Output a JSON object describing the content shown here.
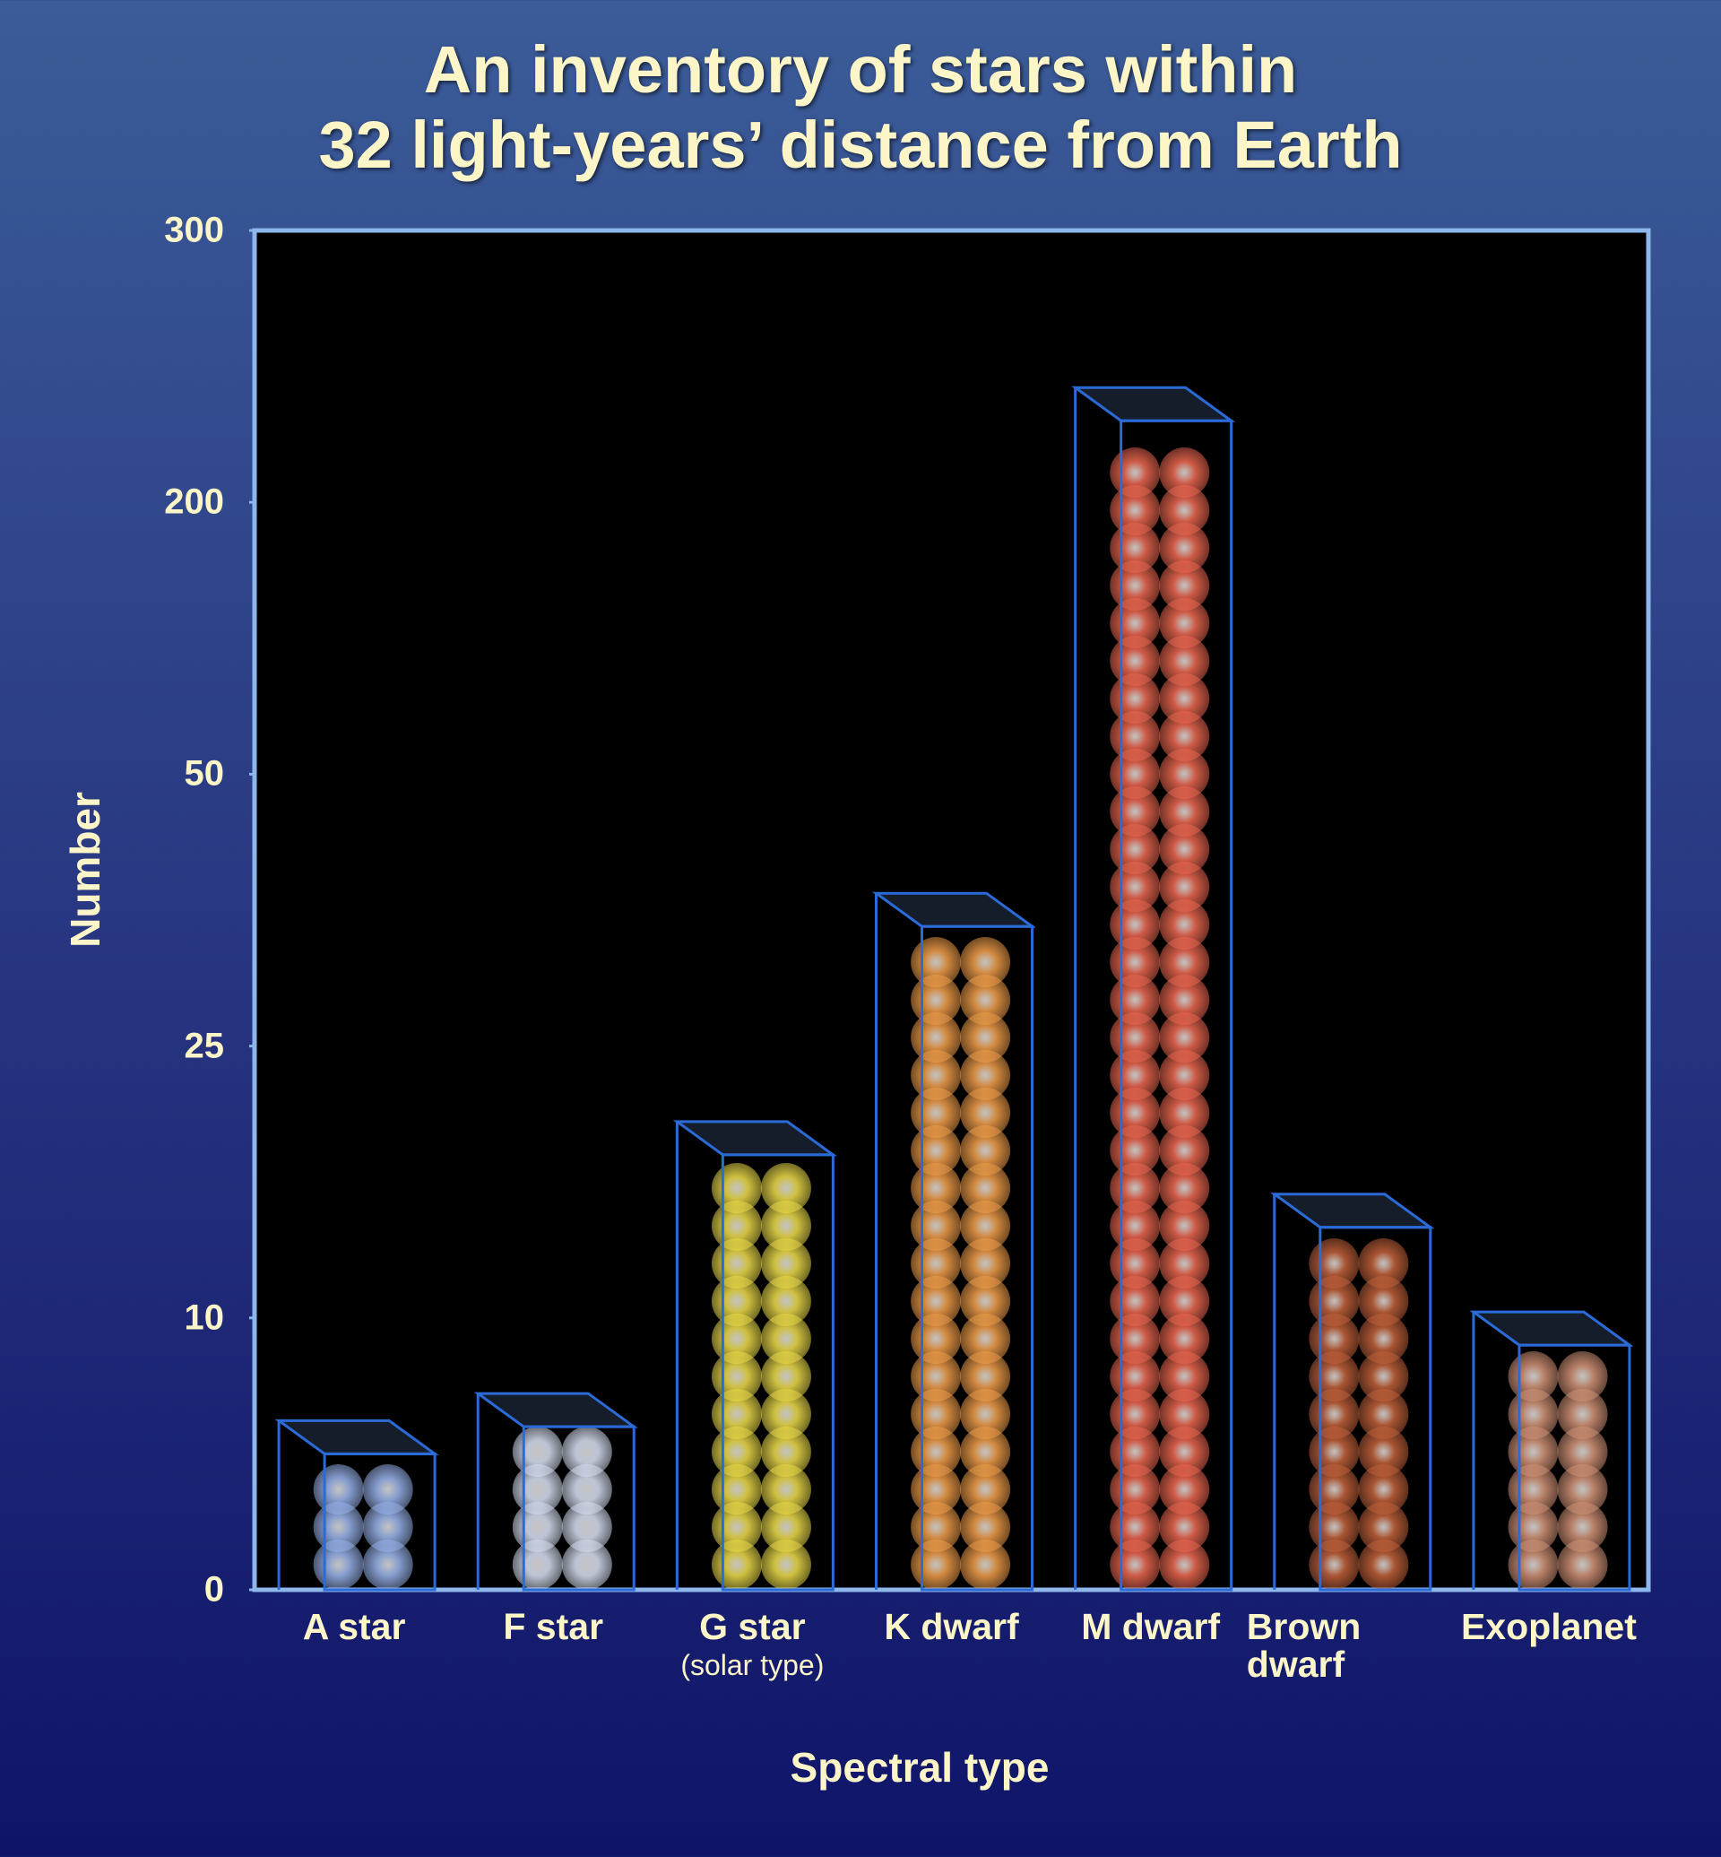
{
  "chart_data": {
    "type": "bar",
    "title": "An inventory of stars within\n32 light-years’ distance from Earth",
    "x_label": "Spectral type",
    "y_label": "Number",
    "categories": [
      "A star",
      "F star",
      "G star",
      "K dwarf",
      "M dwarf",
      "Brown\ndwarf",
      "Exoplanet"
    ],
    "category_notes": [
      null,
      null,
      "(solar\ntype)",
      null,
      null,
      null,
      null
    ],
    "values": [
      5,
      6,
      19,
      36,
      230,
      15,
      9
    ],
    "colors": [
      "#9db8f2",
      "#dfe7fa",
      "#f3e24c",
      "#f7a24c",
      "#f26a52",
      "#c7643c",
      "#d8977a"
    ],
    "ylim": [
      0,
      300
    ],
    "yticks": [
      0,
      10,
      25,
      50,
      200,
      300
    ]
  }
}
